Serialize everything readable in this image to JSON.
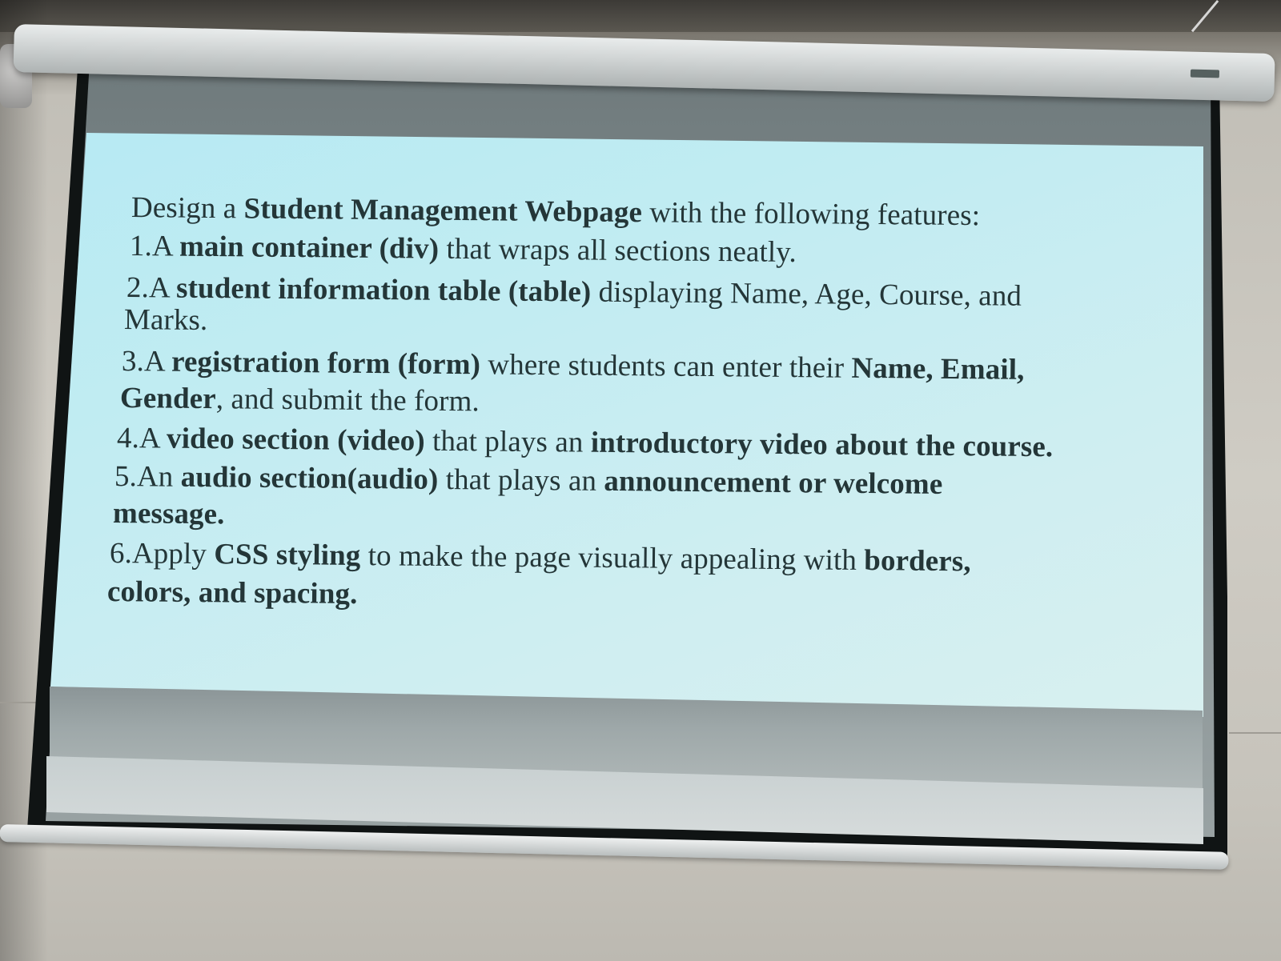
{
  "slide": {
    "intro": {
      "prefix": "Design a ",
      "bold": "Student Management Webpage",
      "suffix": " with the following features:"
    },
    "item1": {
      "num": "1.A ",
      "bold": "main container (div)",
      "suffix": " that wraps all sections neatly."
    },
    "item2": {
      "num": "2.A ",
      "bold": "student information table (table)",
      "suffix": " displaying Name, Age, Course, and",
      "cont": "Marks."
    },
    "item3": {
      "num": "3.A ",
      "bold": "registration form (form)",
      "mid": " where students can enter their ",
      "bold2": "Name, Email,",
      "cont_bold": "Gender",
      "cont_suffix": ", and submit the form."
    },
    "item4": {
      "num": "4.A ",
      "bold": "video section (video)",
      "mid": " that plays an ",
      "bold2": "introductory video about the course."
    },
    "item5": {
      "num": "5.An ",
      "bold": "audio section(audio)",
      "mid": " that plays an ",
      "bold2": "announcement or welcome",
      "cont_bold": "message."
    },
    "item6": {
      "num": "6.Apply ",
      "bold": "CSS styling",
      "mid": " to make the page visually appealing with ",
      "bold2": "borders,",
      "cont_bold": "colors, and spacing."
    }
  },
  "colors": {
    "slide_bg": "#c2ecf2",
    "text": "#243638",
    "frame": "#101414"
  }
}
